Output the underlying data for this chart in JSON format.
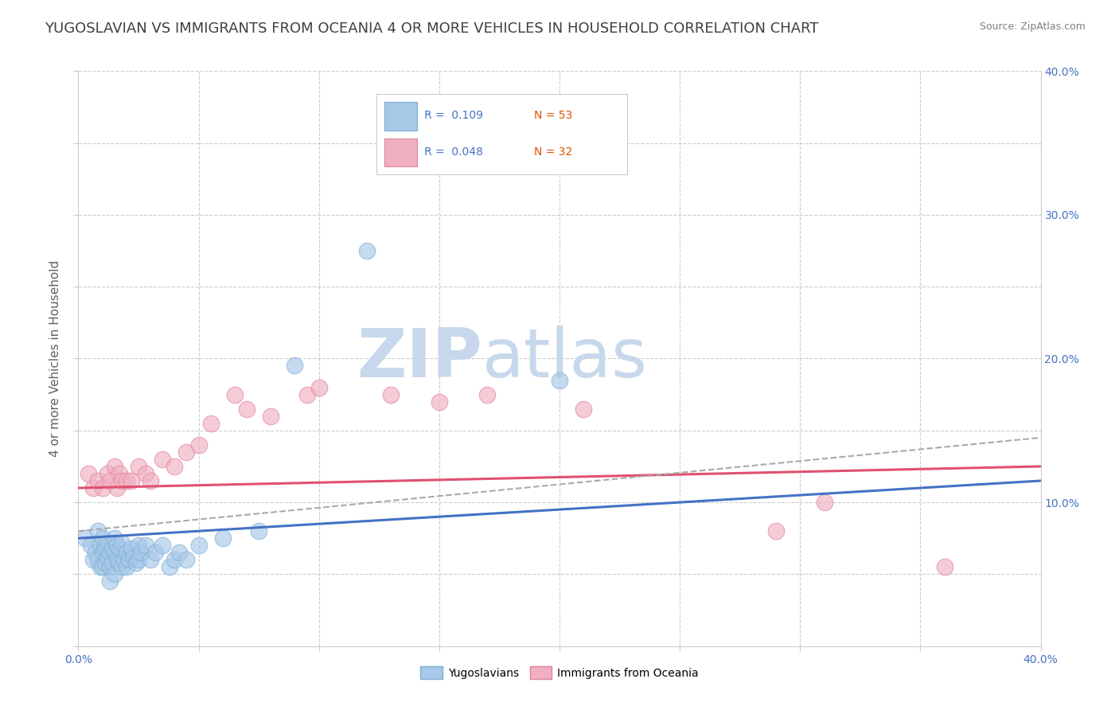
{
  "title": "YUGOSLAVIAN VS IMMIGRANTS FROM OCEANIA 4 OR MORE VEHICLES IN HOUSEHOLD CORRELATION CHART",
  "source_text": "Source: ZipAtlas.com",
  "ylabel": "4 or more Vehicles in Household",
  "xlim": [
    0.0,
    0.4
  ],
  "ylim": [
    0.0,
    0.4
  ],
  "xticks": [
    0.0,
    0.05,
    0.1,
    0.15,
    0.2,
    0.25,
    0.3,
    0.35,
    0.4
  ],
  "yticks": [
    0.0,
    0.05,
    0.1,
    0.15,
    0.2,
    0.25,
    0.3,
    0.35,
    0.4
  ],
  "right_ytick_labels": [
    "",
    "",
    "10.0%",
    "",
    "20.0%",
    "",
    "30.0%",
    "",
    "40.0%"
  ],
  "xtick_labels_show": [
    "0.0%",
    "40.0%"
  ],
  "legend_r1": "R =  0.109   N = 53",
  "legend_r2": "R =  0.048   N = 32",
  "blue_color": "#a8c8e8",
  "blue_edge_color": "#7aafd4",
  "pink_color": "#f0b0c0",
  "pink_edge_color": "#e080a0",
  "blue_line_color": "#4472c4",
  "pink_line_color": "#e05070",
  "dashed_line_color": "#aaaaaa",
  "watermark_zip": "ZIP",
  "watermark_atlas": "atlas",
  "watermark_color": "#c8d8ec",
  "grid_color": "#cccccc",
  "background_color": "#ffffff",
  "title_color": "#404040",
  "title_fontsize": 13,
  "axis_label_fontsize": 11,
  "tick_fontsize": 10,
  "legend_text_color": "#4472c4",
  "legend_n_color": "#e05000",
  "blue_scatter_x": [
    0.003,
    0.005,
    0.006,
    0.007,
    0.008,
    0.008,
    0.009,
    0.009,
    0.01,
    0.01,
    0.01,
    0.011,
    0.011,
    0.012,
    0.012,
    0.013,
    0.013,
    0.013,
    0.014,
    0.014,
    0.015,
    0.015,
    0.015,
    0.016,
    0.016,
    0.017,
    0.017,
    0.018,
    0.018,
    0.019,
    0.02,
    0.02,
    0.021,
    0.022,
    0.023,
    0.024,
    0.025,
    0.025,
    0.026,
    0.028,
    0.03,
    0.032,
    0.035,
    0.038,
    0.04,
    0.042,
    0.045,
    0.05,
    0.06,
    0.075,
    0.09,
    0.12,
    0.2
  ],
  "blue_scatter_y": [
    0.075,
    0.07,
    0.06,
    0.065,
    0.08,
    0.06,
    0.07,
    0.055,
    0.075,
    0.065,
    0.055,
    0.068,
    0.058,
    0.072,
    0.062,
    0.065,
    0.055,
    0.045,
    0.068,
    0.058,
    0.075,
    0.065,
    0.05,
    0.07,
    0.06,
    0.068,
    0.058,
    0.072,
    0.055,
    0.06,
    0.065,
    0.055,
    0.06,
    0.068,
    0.062,
    0.058,
    0.07,
    0.06,
    0.065,
    0.07,
    0.06,
    0.065,
    0.07,
    0.055,
    0.06,
    0.065,
    0.06,
    0.07,
    0.075,
    0.08,
    0.195,
    0.275,
    0.185
  ],
  "pink_scatter_x": [
    0.004,
    0.006,
    0.008,
    0.01,
    0.012,
    0.013,
    0.015,
    0.016,
    0.017,
    0.018,
    0.02,
    0.022,
    0.025,
    0.028,
    0.03,
    0.035,
    0.04,
    0.045,
    0.05,
    0.055,
    0.065,
    0.07,
    0.08,
    0.095,
    0.1,
    0.13,
    0.15,
    0.17,
    0.21,
    0.29,
    0.31,
    0.36
  ],
  "pink_scatter_y": [
    0.12,
    0.11,
    0.115,
    0.11,
    0.12,
    0.115,
    0.125,
    0.11,
    0.12,
    0.115,
    0.115,
    0.115,
    0.125,
    0.12,
    0.115,
    0.13,
    0.125,
    0.135,
    0.14,
    0.155,
    0.175,
    0.165,
    0.16,
    0.175,
    0.18,
    0.175,
    0.17,
    0.175,
    0.165,
    0.08,
    0.1,
    0.055
  ],
  "blue_line_x": [
    0.0,
    0.4
  ],
  "blue_line_y": [
    0.075,
    0.115
  ],
  "pink_line_x": [
    0.0,
    0.4
  ],
  "pink_line_y": [
    0.11,
    0.125
  ],
  "dashed_line_x": [
    0.0,
    0.4
  ],
  "dashed_line_y": [
    0.08,
    0.145
  ]
}
